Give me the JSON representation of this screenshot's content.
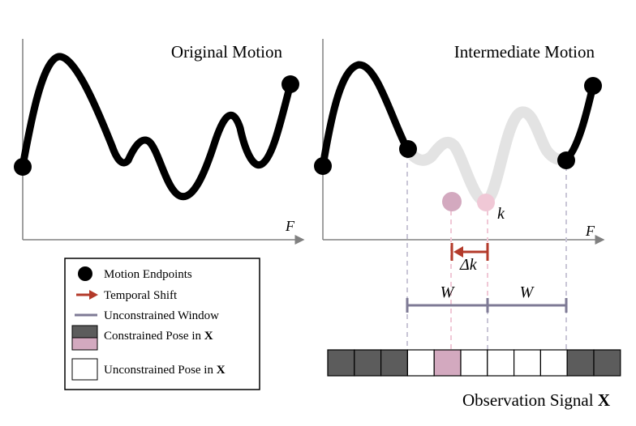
{
  "left_panel": {
    "title": "Original Motion",
    "axis_label": "F"
  },
  "right_panel": {
    "title": "Intermediate Motion",
    "axis_label": "F",
    "k_label": "k",
    "delta_k_label": "Δk",
    "window_label_left": "W",
    "window_label_right": "W"
  },
  "legend": {
    "items": [
      {
        "label": "Motion Endpoints"
      },
      {
        "label": "Temporal Shift"
      },
      {
        "label": "Unconstrained Window"
      },
      {
        "label": "Constrained Pose in ",
        "bold": "X"
      },
      {
        "label": "Unconstrained Pose in ",
        "bold": "X"
      }
    ]
  },
  "observation": {
    "caption": "Observation Signal ",
    "caption_bold": "X",
    "cells": [
      "constrained",
      "constrained",
      "constrained",
      "unconstrained",
      "shifted",
      "unconstrained",
      "unconstrained",
      "unconstrained",
      "unconstrained",
      "constrained",
      "constrained"
    ]
  },
  "colors": {
    "curve": "#000000",
    "ghost_curve": "#e3e3e3",
    "axis": "#808080",
    "pink": "#d3a9bf",
    "pink_guide": "#f0c8d6",
    "shift_red": "#b33a2a",
    "window": "#7e7a95",
    "constrained": "#5c5c5c",
    "guide": "#c9c6d6"
  }
}
